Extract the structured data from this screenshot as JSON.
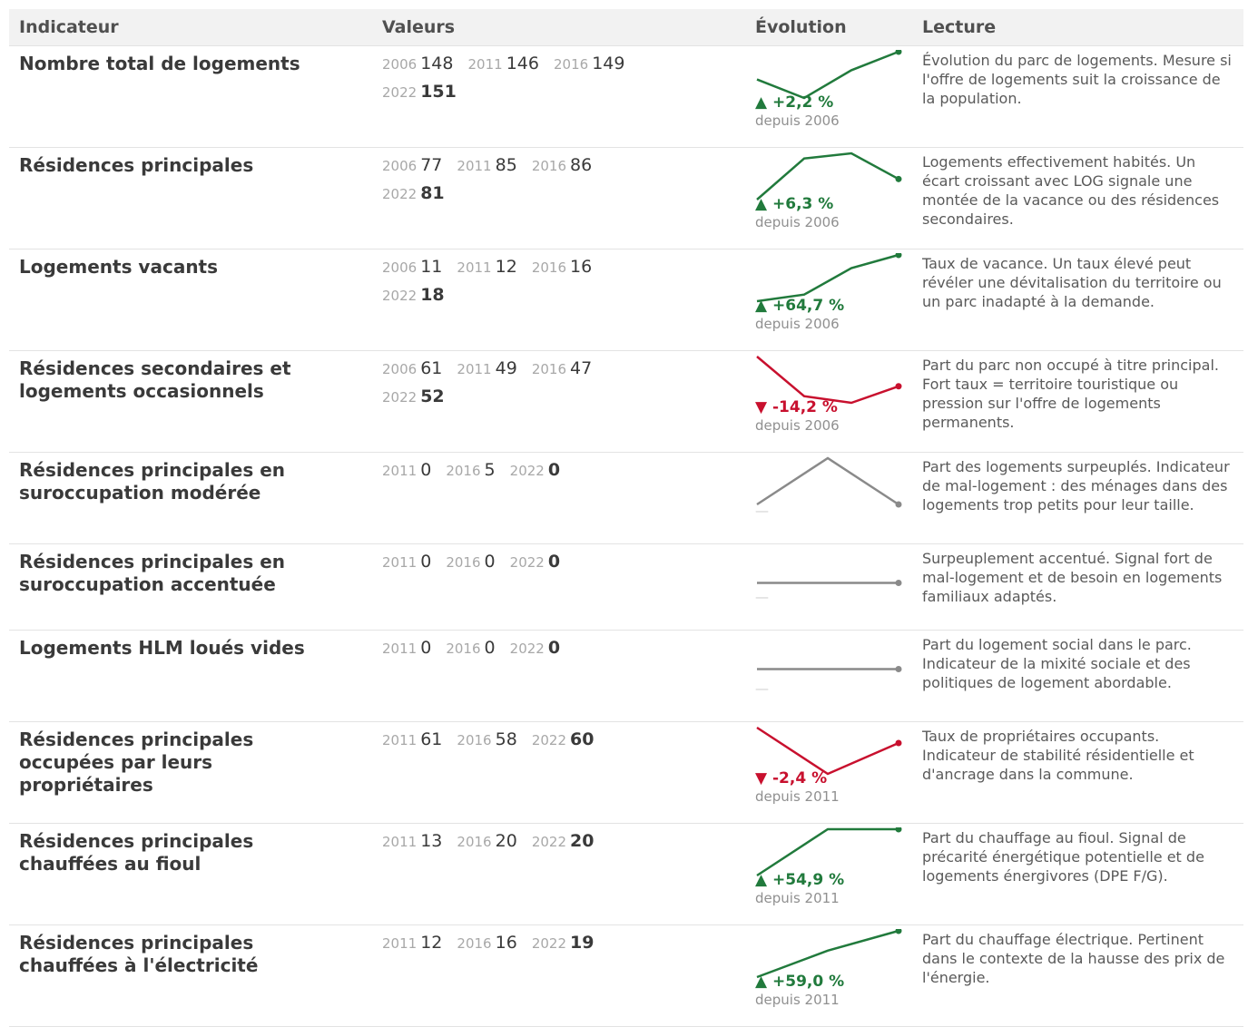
{
  "header": {
    "indicator": "Indicateur",
    "values": "Valeurs",
    "evolution": "Évolution",
    "reading": "Lecture"
  },
  "colors": {
    "up": "#217a3c",
    "down": "#c8102e",
    "neutral": "#8a8a8a"
  },
  "rows": [
    {
      "label": "Nombre total de logements",
      "years": [
        "2006",
        "2011",
        "2016",
        "2022"
      ],
      "values": [
        148,
        146,
        149,
        151
      ],
      "trend": "up",
      "change": "▲ +2,2 %",
      "since": "depuis 2006",
      "reading": "Évolution du parc de logements. Mesure si l'offre de logements suit la croissance de la population."
    },
    {
      "label": "Résidences principales",
      "years": [
        "2006",
        "2011",
        "2016",
        "2022"
      ],
      "values": [
        77,
        85,
        86,
        81
      ],
      "trend": "up",
      "change": "▲ +6,3 %",
      "since": "depuis 2006",
      "reading": "Logements effectivement habités. Un écart croissant avec LOG signale une montée de la vacance ou des résidences secondaires."
    },
    {
      "label": "Logements vacants",
      "years": [
        "2006",
        "2011",
        "2016",
        "2022"
      ],
      "values": [
        11,
        12,
        16,
        18
      ],
      "trend": "up",
      "change": "▲ +64,7 %",
      "since": "depuis 2006",
      "reading": "Taux de vacance. Un taux élevé peut révéler une dévitalisation du territoire ou un parc inadapté à la demande."
    },
    {
      "label": "Résidences secondaires et logements occasionnels",
      "years": [
        "2006",
        "2011",
        "2016",
        "2022"
      ],
      "values": [
        61,
        49,
        47,
        52
      ],
      "trend": "down",
      "change": "▼ -14,2 %",
      "since": "depuis 2006",
      "reading": "Part du parc non occupé à titre principal. Fort taux = territoire touristique ou pression sur l'offre de logements permanents."
    },
    {
      "label": "Résidences principales en suroccupation modérée",
      "years": [
        "2011",
        "2016",
        "2022"
      ],
      "values": [
        0,
        5,
        0
      ],
      "trend": "neutral",
      "change": "—",
      "since": "",
      "reading": "Part des logements surpeuplés. Indicateur de mal-logement : des ménages dans des logements trop petits pour leur taille."
    },
    {
      "label": "Résidences principales en suroccupation accentuée",
      "years": [
        "2011",
        "2016",
        "2022"
      ],
      "values": [
        0,
        0,
        0
      ],
      "trend": "neutral",
      "change": "—",
      "since": "",
      "reading": "Surpeuplement accentué. Signal fort de mal-logement et de besoin en logements familiaux adaptés."
    },
    {
      "label": "Logements HLM loués vides",
      "years": [
        "2011",
        "2016",
        "2022"
      ],
      "values": [
        0,
        0,
        0
      ],
      "trend": "neutral",
      "change": "—",
      "since": "",
      "reading": "Part du logement social dans le parc. Indicateur de la mixité sociale et des politiques de logement abordable."
    },
    {
      "label": "Résidences principales occupées par leurs propriétaires",
      "years": [
        "2011",
        "2016",
        "2022"
      ],
      "values": [
        61,
        58,
        60
      ],
      "trend": "down",
      "change": "▼ -2,4 %",
      "since": "depuis 2011",
      "reading": "Taux de propriétaires occupants. Indicateur de stabilité résidentielle et d'ancrage dans la commune."
    },
    {
      "label": "Résidences principales chauffées au fioul",
      "years": [
        "2011",
        "2016",
        "2022"
      ],
      "values": [
        13,
        20,
        20
      ],
      "trend": "up",
      "change": "▲ +54,9 %",
      "since": "depuis 2011",
      "reading": "Part du chauffage au fioul. Signal de précarité énergétique potentielle et de logements énergivores (DPE F/G)."
    },
    {
      "label": "Résidences principales chauffées à l'électricité",
      "years": [
        "2011",
        "2016",
        "2022"
      ],
      "values": [
        12,
        16,
        19
      ],
      "trend": "up",
      "change": "▲ +59,0 %",
      "since": "depuis 2011",
      "reading": "Part du chauffage électrique. Pertinent dans le contexte de la hausse des prix de l'énergie."
    }
  ]
}
